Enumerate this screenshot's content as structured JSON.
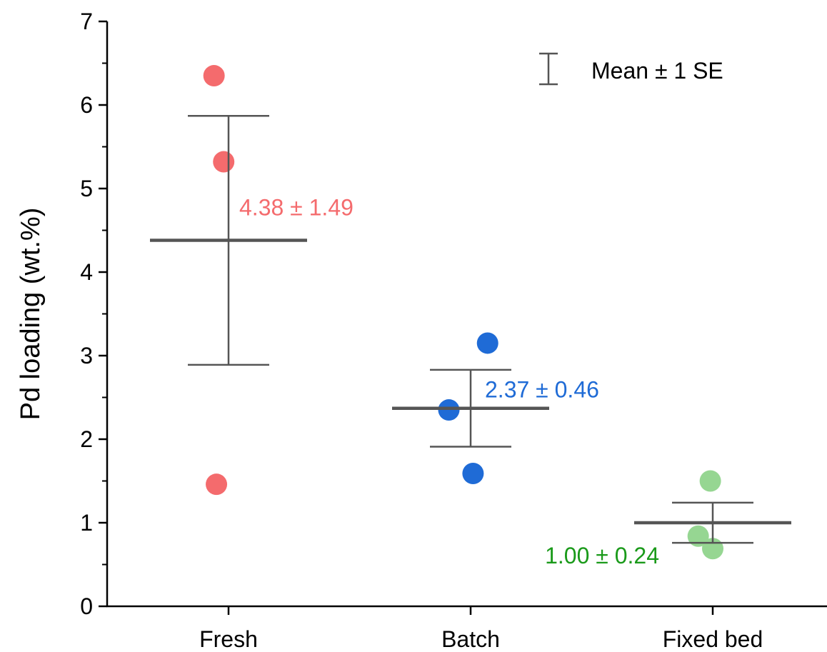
{
  "chart_data": {
    "type": "scatter",
    "title": "",
    "xlabel": "",
    "ylabel": "Pd loading (wt.%)",
    "ylim": [
      0,
      7
    ],
    "yticks": [
      0,
      1,
      2,
      3,
      4,
      5,
      6,
      7
    ],
    "grid": false,
    "categories": [
      "Fresh",
      "Batch",
      "Fixed bed"
    ],
    "groups": [
      {
        "category": "Fresh",
        "color": "#F46B6D",
        "points": [
          {
            "jitter": -0.06,
            "value": 6.35
          },
          {
            "jitter": -0.02,
            "value": 5.32
          },
          {
            "jitter": -0.05,
            "value": 1.46
          }
        ],
        "mean": 4.38,
        "se": 1.49,
        "label": "4.38 ± 1.49",
        "label_color": "#F46B6D"
      },
      {
        "category": "Batch",
        "color": "#1F6BD6",
        "points": [
          {
            "jitter": 0.07,
            "value": 3.15
          },
          {
            "jitter": -0.09,
            "value": 2.35
          },
          {
            "jitter": 0.01,
            "value": 1.59
          }
        ],
        "mean": 2.37,
        "se": 0.46,
        "label": "2.37 ± 0.46",
        "label_color": "#1F6BD6"
      },
      {
        "category": "Fixed bed",
        "color": "#96D692",
        "points": [
          {
            "jitter": -0.01,
            "value": 1.5
          },
          {
            "jitter": -0.06,
            "value": 0.84
          },
          {
            "jitter": 0.0,
            "value": 0.69
          }
        ],
        "mean": 1.0,
        "se": 0.24,
        "label": "1.00 ± 0.24",
        "label_color": "#1A9A1A"
      }
    ],
    "legend": {
      "position": "top-right",
      "entries": [
        {
          "symbol": "error-bar",
          "label": "Mean ± 1 SE"
        }
      ]
    },
    "colors": {
      "axis": "#000000",
      "bars": "#555555"
    }
  }
}
